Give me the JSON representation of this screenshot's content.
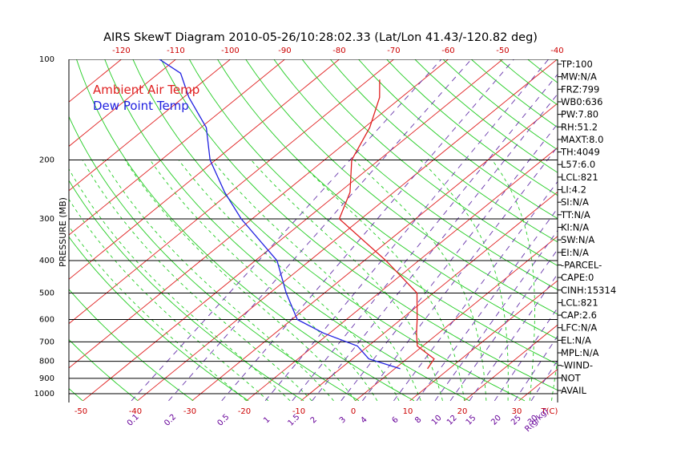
{
  "chart_data": {
    "type": "line",
    "title": "AIRS SkewT Diagram 2010-05-26/10:28:02.33 (Lat/Lon 41.43/-120.82 deg)",
    "ylabel": "PRESSURE (MB)",
    "y_scale": "log",
    "ylim": [
      1050,
      100
    ],
    "xlim_bottom_celsius": [
      -50,
      40
    ],
    "pressure_ticks": [
      100,
      200,
      300,
      400,
      500,
      600,
      700,
      800,
      900,
      1000
    ],
    "top_temp_ticks": [
      -120,
      -110,
      -100,
      -90,
      -80,
      -70,
      -60,
      -50,
      -40
    ],
    "bottom_temp_ticks": [
      -50,
      -40,
      -30,
      -20,
      -10,
      0,
      10,
      20,
      30
    ],
    "bottom_temp_unit": "T(C)",
    "mixing_ratio_ticks": [
      "0.1",
      "0.2",
      "0.5",
      "1",
      "1.5",
      "2",
      "3",
      "4",
      "6",
      "8",
      "10",
      "12",
      "15",
      "20",
      "25",
      "30",
      "40"
    ],
    "mixing_ratio_unit": "R(g/kg)",
    "legend": [
      {
        "name": "Ambient Air Temp",
        "color": "#e02020"
      },
      {
        "name": "Dew Point Temp",
        "color": "#2020e0"
      }
    ],
    "series": [
      {
        "name": "Ambient Air Temp",
        "color": "#e02020",
        "pressure": [
          842,
          787,
          720,
          660,
          600,
          500,
          400,
          300,
          250,
          200,
          160,
          130,
          115
        ],
        "temperature": [
          6,
          5,
          -1,
          -4,
          -7,
          -13,
          -26,
          -44,
          -48,
          -55,
          -59,
          -64,
          -68
        ]
      },
      {
        "name": "Dew Point Temp",
        "color": "#2020e0",
        "pressure": [
          842,
          787,
          720,
          660,
          600,
          500,
          400,
          300,
          250,
          200,
          160,
          130,
          110,
          100
        ],
        "temperature": [
          1,
          -7,
          -12,
          -21,
          -29,
          -37,
          -46,
          -62,
          -71,
          -81,
          -89,
          -99,
          -106,
          -113
        ]
      }
    ],
    "grid": true
  },
  "side_panel": [
    "TP:100",
    "MW:N/A",
    "FRZ:799",
    "WB0:636",
    "PW:7.80",
    "RH:51.2",
    "MAXT:8.0",
    "TH:4049",
    "L57:6.0",
    "LCL:821",
    "LI:4.2",
    "SI:N/A",
    "TT:N/A",
    "KI:N/A",
    "SW:N/A",
    "EI:N/A",
    "-PARCEL-",
    "CAPE:0",
    "CINH:15314",
    "LCL:821",
    "CAP:2.6",
    "LFC:N/A",
    "EL:N/A",
    "MPL:N/A",
    "-WIND-",
    "NOT",
    "AVAIL"
  ],
  "colors": {
    "isotherm": "#e02020",
    "dry_adiabat": "#22cc22",
    "moist_adiabat": "#22cc22",
    "mixing_ratio": "#6633aa",
    "isobar": "#000000",
    "tick_red": "#cc0000",
    "tick_purple": "#660099"
  }
}
